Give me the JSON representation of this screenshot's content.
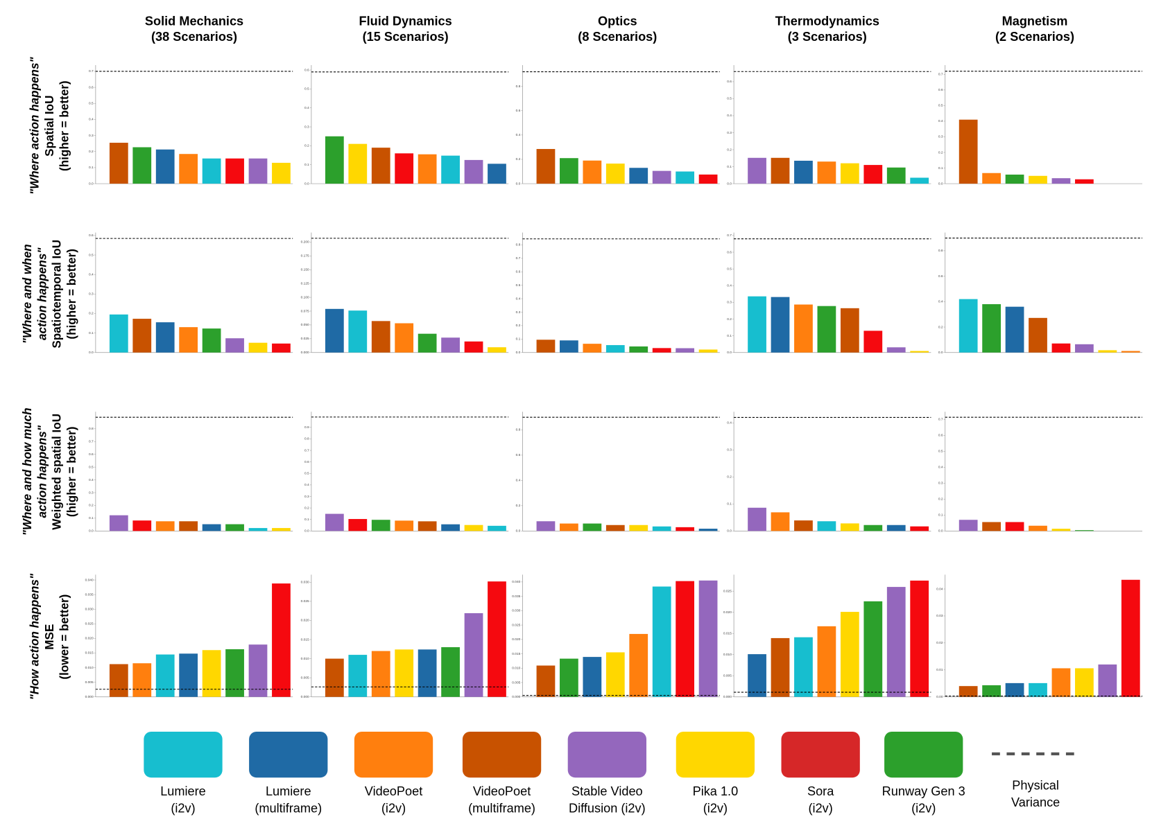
{
  "columns": [
    {
      "name": "Solid Mechanics",
      "count": "(38 Scenarios)"
    },
    {
      "name": "Fluid Dynamics",
      "count": "(15 Scenarios)"
    },
    {
      "name": "Optics",
      "count": "(8 Scenarios)"
    },
    {
      "name": "Thermodynamics",
      "count": "(3 Scenarios)"
    },
    {
      "name": "Magnetism",
      "count": "(2 Scenarios)"
    }
  ],
  "rows": [
    {
      "question": [
        "\"Where action happens\""
      ],
      "metric": "Spatial IoU",
      "note": "(higher = better)"
    },
    {
      "question": [
        "\"Where and when",
        "action happens\""
      ],
      "metric": "Spatiotemporal IoU",
      "note": "(higher = better)"
    },
    {
      "question": [
        "\"Where and how much",
        "action happens\""
      ],
      "metric": "Weighted spatial IoU",
      "note": "(higher = better)"
    },
    {
      "question": [
        "\"How action happens\""
      ],
      "metric": "MSE",
      "note": "(lower = better)"
    }
  ],
  "legend": {
    "items": [
      {
        "label": [
          "Lumiere",
          "(i2v)"
        ],
        "color": "#17becf"
      },
      {
        "label": [
          "Lumiere",
          "(multiframe)"
        ],
        "color": "#1f6aa5"
      },
      {
        "label": [
          "VideoPoet",
          "(i2v)"
        ],
        "color": "#ff7f0e"
      },
      {
        "label": [
          "VideoPoet",
          "(multiframe)"
        ],
        "color": "#c85200"
      },
      {
        "label": [
          "Stable Video",
          "Diffusion (i2v)"
        ],
        "color": "#9467bd"
      },
      {
        "label": [
          "Pika 1.0",
          "(i2v)"
        ],
        "color": "#ffd700"
      },
      {
        "label": [
          "Sora",
          "(i2v)"
        ],
        "color": "#d62728"
      },
      {
        "label": [
          "Runway Gen 3",
          "(i2v)"
        ],
        "color": "#2ca02c"
      }
    ],
    "reference": {
      "label": [
        "Physical",
        "Variance"
      ],
      "color": "#555555"
    }
  },
  "chart_data": [
    {
      "type": "bar",
      "values": [
        0.255,
        0.227,
        0.213,
        0.185,
        0.157,
        0.157,
        0.157,
        0.13
      ],
      "colors": [
        "#c85200",
        "#2ca02c",
        "#1f6aa5",
        "#ff7f0e",
        "#17becf",
        "#f5090f",
        "#9467bd",
        "#ffd700"
      ],
      "reference": 0.7,
      "ylim": [
        0,
        0.72
      ],
      "yticks": [
        {
          "value": 0,
          "label": "0.0"
        },
        0.1,
        0.2,
        0.3,
        0.4,
        0.5,
        0.6,
        0.7
      ]
    },
    {
      "type": "bar",
      "values": [
        0.25,
        0.21,
        0.19,
        0.16,
        0.155,
        0.148,
        0.125,
        0.105
      ],
      "colors": [
        "#2ca02c",
        "#ffd700",
        "#c85200",
        "#f5090f",
        "#ff7f0e",
        "#17becf",
        "#9467bd",
        "#1f6aa5"
      ],
      "reference": 0.59,
      "ylim": [
        0,
        0.61
      ],
      "yticks": [
        {
          "value": 0,
          "label": "0.0"
        },
        0.1,
        0.2,
        0.3,
        0.4,
        0.5,
        0.6
      ]
    },
    {
      "type": "bar",
      "values": [
        0.285,
        0.21,
        0.19,
        0.165,
        0.13,
        0.105,
        0.1,
        0.075
      ],
      "colors": [
        "#c85200",
        "#2ca02c",
        "#ff7f0e",
        "#ffd700",
        "#1f6aa5",
        "#9467bd",
        "#17becf",
        "#f5090f"
      ],
      "reference": 0.92,
      "ylim": [
        0,
        0.95
      ],
      "yticks": [
        {
          "value": 0,
          "label": "0.0"
        },
        0.2,
        0.4,
        0.6,
        0.8
      ]
    },
    {
      "type": "bar",
      "values": [
        0.152,
        0.152,
        0.135,
        0.13,
        0.12,
        0.11,
        0.095,
        0.035
      ],
      "colors": [
        "#9467bd",
        "#c85200",
        "#1f6aa5",
        "#ff7f0e",
        "#ffd700",
        "#f5090f",
        "#2ca02c",
        "#17becf"
      ],
      "reference": 0.66,
      "ylim": [
        0,
        0.68
      ],
      "yticks": [
        {
          "value": 0,
          "label": "0.0"
        },
        0.1,
        0.2,
        0.3,
        0.4,
        0.5,
        0.6
      ]
    },
    {
      "type": "bar",
      "values": [
        0.41,
        0.068,
        0.058,
        0.05,
        0.035,
        0.028
      ],
      "colors": [
        "#c85200",
        "#ff7f0e",
        "#2ca02c",
        "#ffd700",
        "#9467bd",
        "#f5090f"
      ],
      "reference": 0.72,
      "ylim": [
        0,
        0.74
      ],
      "yticks": [
        {
          "value": 0,
          "label": "0.0"
        },
        0.1,
        0.2,
        0.3,
        0.4,
        0.5,
        0.6,
        0.7
      ]
    },
    {
      "type": "bar",
      "values": [
        0.195,
        0.173,
        0.155,
        0.13,
        0.123,
        0.073,
        0.05,
        0.046
      ],
      "colors": [
        "#17becf",
        "#c85200",
        "#1f6aa5",
        "#ff7f0e",
        "#2ca02c",
        "#9467bd",
        "#ffd700",
        "#f5090f"
      ],
      "reference": 0.585,
      "ylim": [
        0,
        0.6
      ],
      "yticks": [
        {
          "value": 0,
          "label": "0.0"
        },
        0.1,
        0.2,
        0.3,
        0.4,
        0.5,
        0.6
      ]
    },
    {
      "type": "bar",
      "values": [
        0.079,
        0.076,
        0.057,
        0.053,
        0.034,
        0.027,
        0.02,
        0.0095
      ],
      "colors": [
        "#1f6aa5",
        "#17becf",
        "#c85200",
        "#ff7f0e",
        "#2ca02c",
        "#9467bd",
        "#f5090f",
        "#ffd700"
      ],
      "reference": 0.207,
      "ylim": [
        0,
        0.212
      ],
      "yticks": [
        {
          "value": 0,
          "label": "0.000"
        },
        0.025,
        {
          "value": 0.05,
          "label": "0.050"
        },
        0.075,
        {
          "value": 0.1,
          "label": "0.100"
        },
        0.125,
        {
          "value": 0.15,
          "label": "0.150"
        },
        0.175,
        {
          "value": 0.2,
          "label": "0.200"
        }
      ]
    },
    {
      "type": "bar",
      "values": [
        0.095,
        0.09,
        0.065,
        0.055,
        0.045,
        0.033,
        0.032,
        0.022
      ],
      "colors": [
        "#c85200",
        "#1f6aa5",
        "#ff7f0e",
        "#17becf",
        "#2ca02c",
        "#f5090f",
        "#9467bd",
        "#ffd700"
      ],
      "reference": 0.845,
      "ylim": [
        0,
        0.87
      ],
      "yticks": [
        {
          "value": 0,
          "label": "0.0"
        },
        0.1,
        0.2,
        0.3,
        0.4,
        0.5,
        0.6,
        0.7,
        0.8
      ]
    },
    {
      "type": "bar",
      "values": [
        0.336,
        0.332,
        0.287,
        0.278,
        0.265,
        0.13,
        0.031,
        0.009
      ],
      "colors": [
        "#17becf",
        "#1f6aa5",
        "#ff7f0e",
        "#2ca02c",
        "#c85200",
        "#f5090f",
        "#9467bd",
        "#ffd700"
      ],
      "reference": 0.68,
      "ylim": [
        0,
        0.7
      ],
      "yticks": [
        {
          "value": 0,
          "label": "0.0"
        },
        0.1,
        0.2,
        0.3,
        0.4,
        0.5,
        0.6,
        0.7
      ]
    },
    {
      "type": "bar",
      "values": [
        0.42,
        0.38,
        0.36,
        0.272,
        0.071,
        0.065,
        0.018,
        0.012
      ],
      "colors": [
        "#17becf",
        "#2ca02c",
        "#1f6aa5",
        "#c85200",
        "#f5090f",
        "#9467bd",
        "#ffd700",
        "#ff7f0e"
      ],
      "reference": 0.9,
      "ylim": [
        0,
        0.92
      ],
      "yticks": [
        {
          "value": 0,
          "label": "0.0"
        },
        0.2,
        0.4,
        0.6,
        0.8
      ]
    },
    {
      "type": "bar",
      "values": [
        0.123,
        0.082,
        0.076,
        0.076,
        0.053,
        0.053,
        0.023,
        0.023
      ],
      "colors": [
        "#9467bd",
        "#f5090f",
        "#ff7f0e",
        "#c85200",
        "#1f6aa5",
        "#2ca02c",
        "#17becf",
        "#ffd700"
      ],
      "reference": 0.89,
      "ylim": [
        0,
        0.91
      ],
      "yticks": [
        {
          "value": 0,
          "label": "0.0"
        },
        0.1,
        0.2,
        0.3,
        0.4,
        0.5,
        0.6,
        0.7,
        0.8
      ]
    },
    {
      "type": "bar",
      "values": [
        0.149,
        0.104,
        0.097,
        0.09,
        0.084,
        0.058,
        0.052,
        0.045
      ],
      "colors": [
        "#9467bd",
        "#f5090f",
        "#2ca02c",
        "#ff7f0e",
        "#c85200",
        "#1f6aa5",
        "#ffd700",
        "#17becf"
      ],
      "reference": 0.99,
      "ylim": [
        0,
        1.01
      ],
      "yticks": [
        {
          "value": 0,
          "label": "0.0"
        },
        0.1,
        0.2,
        0.3,
        0.4,
        0.5,
        0.6,
        0.7,
        0.8,
        0.9
      ]
    },
    {
      "type": "bar",
      "values": [
        0.077,
        0.059,
        0.059,
        0.047,
        0.047,
        0.036,
        0.03,
        0.018
      ],
      "colors": [
        "#9467bd",
        "#ff7f0e",
        "#2ca02c",
        "#c85200",
        "#ffd700",
        "#17becf",
        "#f5090f",
        "#1f6aa5"
      ],
      "reference": 0.9,
      "ylim": [
        0,
        0.92
      ],
      "yticks": [
        {
          "value": 0,
          "label": "0.0"
        },
        0.2,
        0.4,
        0.6,
        0.8
      ]
    },
    {
      "type": "bar",
      "values": [
        0.086,
        0.069,
        0.039,
        0.036,
        0.028,
        0.022,
        0.022,
        0.017
      ],
      "colors": [
        "#9467bd",
        "#ff7f0e",
        "#c85200",
        "#17becf",
        "#ffd700",
        "#2ca02c",
        "#1f6aa5",
        "#f5090f"
      ],
      "reference": 0.42,
      "ylim": [
        0,
        0.43
      ],
      "yticks": [
        {
          "value": 0,
          "label": "0.0"
        },
        0.1,
        0.2,
        0.3,
        0.4
      ]
    },
    {
      "type": "bar",
      "values": [
        0.07,
        0.056,
        0.056,
        0.033,
        0.014,
        0.005
      ],
      "colors": [
        "#9467bd",
        "#c85200",
        "#f5090f",
        "#ff7f0e",
        "#ffd700",
        "#2ca02c"
      ],
      "reference": 0.714,
      "ylim": [
        0,
        0.73
      ],
      "yticks": [
        {
          "value": 0,
          "label": "0.0"
        },
        0.1,
        0.2,
        0.3,
        0.4,
        0.5,
        0.6,
        0.7
      ]
    },
    {
      "type": "bar",
      "values": [
        0.0112,
        0.0115,
        0.0145,
        0.0148,
        0.016,
        0.0163,
        0.0179,
        0.0388
      ],
      "colors": [
        "#c85200",
        "#ff7f0e",
        "#17becf",
        "#1f6aa5",
        "#ffd700",
        "#2ca02c",
        "#9467bd",
        "#f5090f"
      ],
      "reference": 0.0026,
      "ylim": [
        0,
        0.0408
      ],
      "yticks": [
        {
          "value": 0,
          "label": "0.000"
        },
        0.005,
        {
          "value": 0.01,
          "label": "0.010"
        },
        0.015,
        {
          "value": 0.02,
          "label": "0.020"
        },
        0.025,
        {
          "value": 0.03,
          "label": "0.030"
        },
        0.035,
        {
          "value": 0.04,
          "label": "0.040"
        }
      ]
    },
    {
      "type": "bar",
      "values": [
        0.01,
        0.011,
        0.012,
        0.0124,
        0.0124,
        0.013,
        0.0219,
        0.0302
      ],
      "colors": [
        "#c85200",
        "#17becf",
        "#ff7f0e",
        "#ffd700",
        "#1f6aa5",
        "#2ca02c",
        "#9467bd",
        "#f5090f"
      ],
      "reference": 0.0026,
      "ylim": [
        0,
        0.0312
      ],
      "yticks": [
        {
          "value": 0,
          "label": "0.000"
        },
        0.005,
        {
          "value": 0.01,
          "label": "0.010"
        },
        0.015,
        {
          "value": 0.02,
          "label": "0.020"
        },
        0.025,
        {
          "value": 0.03,
          "label": "0.030"
        }
      ]
    },
    {
      "type": "bar",
      "values": [
        0.0109,
        0.0133,
        0.0139,
        0.0155,
        0.0219,
        0.0384,
        0.0403,
        0.0405
      ],
      "colors": [
        "#c85200",
        "#2ca02c",
        "#1f6aa5",
        "#ffd700",
        "#ff7f0e",
        "#17becf",
        "#f5090f",
        "#9467bd"
      ],
      "reference": 0.0005,
      "ylim": [
        0,
        0.0415
      ],
      "yticks": [
        {
          "value": 0,
          "label": "0.000"
        },
        0.005,
        {
          "value": 0.01,
          "label": "0.010"
        },
        0.015,
        {
          "value": 0.02,
          "label": "0.020"
        },
        0.025,
        {
          "value": 0.03,
          "label": "0.030"
        },
        0.035,
        {
          "value": 0.04,
          "label": "0.040"
        }
      ]
    },
    {
      "type": "bar",
      "values": [
        0.0101,
        0.0139,
        0.0141,
        0.0167,
        0.0201,
        0.0226,
        0.026,
        0.0275
      ],
      "colors": [
        "#1f6aa5",
        "#c85200",
        "#17becf",
        "#ff7f0e",
        "#ffd700",
        "#2ca02c",
        "#9467bd",
        "#f5090f"
      ],
      "reference": 0.0011,
      "ylim": [
        0,
        0.0282
      ],
      "yticks": [
        {
          "value": 0,
          "label": "0.000"
        },
        0.005,
        {
          "value": 0.01,
          "label": "0.010"
        },
        0.015,
        {
          "value": 0.02,
          "label": "0.020"
        },
        0.025
      ]
    },
    {
      "type": "bar",
      "values": [
        0.004,
        0.0043,
        0.0051,
        0.0051,
        0.0106,
        0.0106,
        0.012,
        0.0434
      ],
      "colors": [
        "#c85200",
        "#2ca02c",
        "#1f6aa5",
        "#17becf",
        "#ff7f0e",
        "#ffd700",
        "#9467bd",
        "#f5090f"
      ],
      "reference": 0.0003,
      "ylim": [
        0,
        0.0442
      ],
      "yticks": [
        {
          "value": 0,
          "label": "0.00"
        },
        0.01,
        0.02,
        0.03,
        0.04
      ]
    }
  ]
}
